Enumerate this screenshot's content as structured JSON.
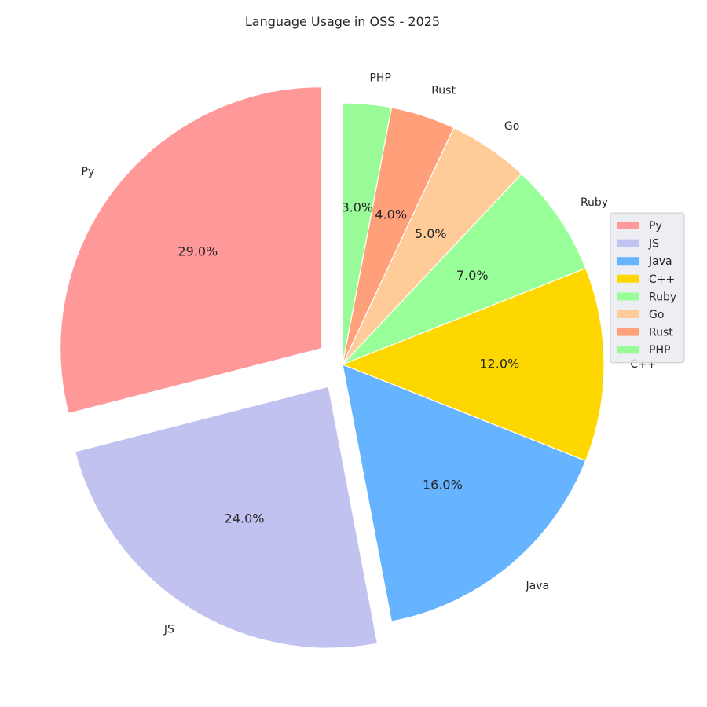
{
  "chart_data": {
    "type": "pie",
    "title": "Language Usage in OSS - 2025",
    "categories": [
      "Py",
      "JS",
      "Java",
      "C++",
      "Ruby",
      "Go",
      "Rust",
      "PHP"
    ],
    "values": [
      29.0,
      24.0,
      16.0,
      12.0,
      7.0,
      5.0,
      4.0,
      3.0
    ],
    "value_labels": [
      "29.0%",
      "24.0%",
      "16.0%",
      "12.0%",
      "7.0%",
      "5.0%",
      "4.0%",
      "3.0%"
    ],
    "colors": [
      "#ff9999",
      "#c2c2f0",
      "#66b3ff",
      "#ffd700",
      "#99ff99",
      "#ffcc99",
      "#ffa07a",
      "#98fb98"
    ],
    "exploded": [
      "Py",
      "JS"
    ],
    "start_angle_deg": 90,
    "direction": "counterclockwise",
    "legend": {
      "placement": "center-right",
      "entries": [
        "Py",
        "JS",
        "Java",
        "C++",
        "Ruby",
        "Go",
        "Rust",
        "PHP"
      ]
    }
  }
}
